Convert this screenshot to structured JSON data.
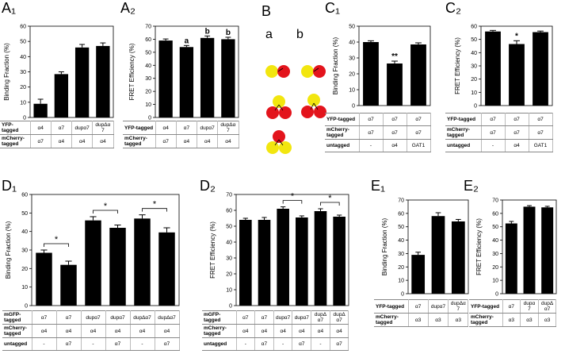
{
  "chart_data": [
    {
      "type": "bar",
      "panel": "A₁",
      "ylabel": "Binding Fraction (%)",
      "ylim": [
        0,
        60
      ],
      "yticks": [
        0,
        10,
        20,
        30,
        40,
        50,
        60
      ],
      "color": "#000000",
      "values": [
        9,
        28.5,
        46,
        47
      ],
      "errors": [
        3,
        1.5,
        2,
        2
      ],
      "table": [
        {
          "label": "YFP-tagged",
          "cells": [
            "α4",
            "α7",
            "dupα7",
            "dupΔα7"
          ]
        },
        {
          "label": "mCherry-tagged",
          "cells": [
            "α7",
            "α4",
            "α4",
            "α4"
          ]
        }
      ]
    },
    {
      "type": "bar",
      "panel": "A₂",
      "ylabel": "FRET Efficiency (%)",
      "ylim": [
        0,
        70
      ],
      "yticks": [
        0,
        10,
        20,
        30,
        40,
        50,
        60,
        70
      ],
      "color": "#000000",
      "values": [
        59,
        54,
        61,
        60
      ],
      "errors": [
        1.2,
        1.2,
        1.5,
        1.5
      ],
      "bar_labels": [
        null,
        "a",
        "b",
        "b"
      ],
      "table": [
        {
          "label": "YFP-tagged",
          "cells": [
            "α4",
            "α7",
            "dupα7",
            "dupΔα7"
          ]
        },
        {
          "label": "mCherry-tagged",
          "cells": [
            "α7",
            "α4",
            "α4",
            "α4"
          ]
        }
      ]
    },
    {
      "type": "bar",
      "panel": "C₁",
      "ylabel": "Binding Fraction (%)",
      "ylim": [
        0,
        50
      ],
      "yticks": [
        0,
        10,
        20,
        30,
        40,
        50
      ],
      "color": "#000000",
      "values": [
        40,
        26.5,
        38.5
      ],
      "errors": [
        0.8,
        1.5,
        1
      ],
      "bar_labels": [
        null,
        "**",
        null
      ],
      "table": [
        {
          "label": "YFP-tagged",
          "cells": [
            "α7",
            "α7",
            "α7"
          ]
        },
        {
          "label": "mCherry-tagged",
          "cells": [
            "α7",
            "α7",
            "α7"
          ]
        },
        {
          "label": "untagged",
          "cells": [
            "-",
            "α4",
            "GAT1"
          ]
        }
      ]
    },
    {
      "type": "bar",
      "panel": "C₂",
      "ylabel": "FRET Efficiency (%)",
      "ylim": [
        0,
        60
      ],
      "yticks": [
        0,
        10,
        20,
        30,
        40,
        50,
        60
      ],
      "color": "#000000",
      "values": [
        56,
        46.5,
        55.5
      ],
      "errors": [
        0.8,
        2.5,
        0.8
      ],
      "bar_labels": [
        null,
        "*",
        null
      ],
      "table": [
        {
          "label": "YFP-tagged",
          "cells": [
            "α7",
            "α7",
            "α7"
          ]
        },
        {
          "label": "mCherry-tagged",
          "cells": [
            "α7",
            "α7",
            "α7"
          ]
        },
        {
          "label": "untagged",
          "cells": [
            "-",
            "α4",
            "GAT1"
          ]
        }
      ]
    },
    {
      "type": "bar",
      "panel": "D₁",
      "ylabel": "Binding Fraction (%)",
      "ylim": [
        0,
        60
      ],
      "yticks": [
        0,
        10,
        20,
        30,
        40,
        50,
        60
      ],
      "color": "#000000",
      "values": [
        28.5,
        22,
        46,
        42,
        47,
        39.5
      ],
      "errors": [
        1.5,
        2,
        2,
        1.5,
        2,
        2.5
      ],
      "bracket_labels": [
        "*",
        null,
        "*",
        null,
        "*",
        null
      ],
      "table": [
        {
          "label": "mGFP-tagged",
          "cells": [
            "α7",
            "α7",
            "dupα7",
            "dupα7",
            "dupΔα7",
            "dupΔα7"
          ]
        },
        {
          "label": "mCherry-tagged",
          "cells": [
            "α4",
            "α4",
            "α4",
            "α4",
            "α4",
            "α4"
          ]
        },
        {
          "label": "untagged",
          "cells": [
            "-",
            "α7",
            "-",
            "α7",
            "-",
            "α7"
          ]
        }
      ]
    },
    {
      "type": "bar",
      "panel": "D₂",
      "ylabel": "FRET Efficiency (%)",
      "ylim": [
        0,
        70
      ],
      "yticks": [
        0,
        10,
        20,
        30,
        40,
        50,
        60,
        70
      ],
      "color": "#000000",
      "values": [
        54,
        54,
        61,
        55.5,
        59.5,
        56
      ],
      "errors": [
        1,
        1.5,
        1.2,
        1,
        1.5,
        1
      ],
      "bracket_labels": [
        null,
        null,
        "*",
        null,
        "*",
        null
      ],
      "table": [
        {
          "label": "mGFP-tagged",
          "cells": [
            "α7",
            "α7",
            "dupα7",
            "dupα7",
            "dupΔα7",
            "dupΔα7"
          ]
        },
        {
          "label": "mCherry-tagged",
          "cells": [
            "α4",
            "α4",
            "α4",
            "α4",
            "α4",
            "α4"
          ]
        },
        {
          "label": "untagged",
          "cells": [
            "-",
            "α7",
            "-",
            "α7",
            "-",
            "α7"
          ]
        }
      ]
    },
    {
      "type": "bar",
      "panel": "E₁",
      "ylabel": "Binding Fraction (%)",
      "ylim": [
        0,
        70
      ],
      "yticks": [
        0,
        10,
        20,
        30,
        40,
        50,
        60,
        70
      ],
      "color": "#000000",
      "values": [
        29,
        58,
        54
      ],
      "errors": [
        2,
        2.5,
        1.5
      ],
      "table": [
        {
          "label": "YFP-tagged",
          "cells": [
            "α7",
            "dupα7",
            "dupΔα7"
          ]
        },
        {
          "label": "mCherry-tagged",
          "cells": [
            "α3",
            "α3",
            "α3"
          ]
        }
      ]
    },
    {
      "type": "bar",
      "panel": "E₂",
      "ylabel": "FRET Efficiency (%)",
      "ylim": [
        0,
        70
      ],
      "yticks": [
        0,
        10,
        20,
        30,
        40,
        50,
        60,
        70
      ],
      "color": "#000000",
      "values": [
        52.5,
        65,
        64.5
      ],
      "errors": [
        1.5,
        0.8,
        0.8
      ],
      "table": [
        {
          "label": "YFP-tagged",
          "cells": [
            "α7",
            "dupα7",
            "dupΔα7"
          ]
        },
        {
          "label": "mCherry-tagged",
          "cells": [
            "α3",
            "α3",
            "α3"
          ]
        }
      ]
    }
  ],
  "diagram": {
    "panel": "B",
    "labels": [
      "a",
      "b"
    ]
  }
}
